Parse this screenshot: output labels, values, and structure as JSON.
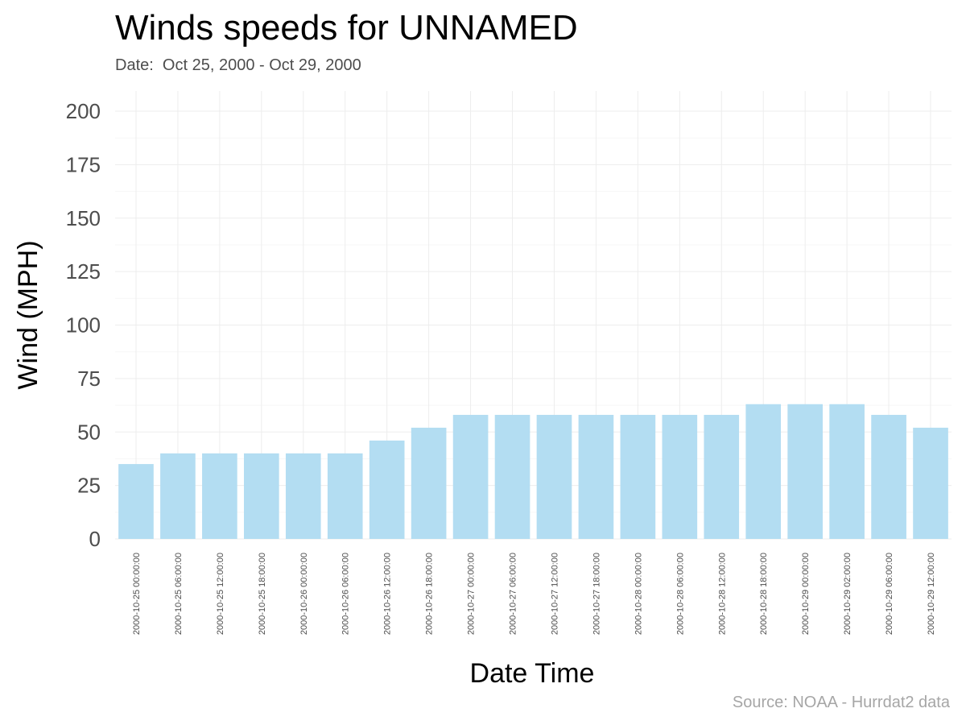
{
  "chart_data": {
    "type": "bar",
    "title": "Winds speeds for UNNAMED",
    "subtitle": "Date:  Oct 25, 2000 - Oct 29, 2000",
    "caption": "Source: NOAA - Hurrdat2 data",
    "xlabel": "Date Time",
    "ylabel": "Wind (MPH)",
    "ylim": [
      0,
      210
    ],
    "yticks": [
      0,
      25,
      50,
      75,
      100,
      125,
      150,
      175,
      200
    ],
    "grid": true,
    "bar_color": "#b3ddf2",
    "categories": [
      "2000-10-25 00:00:00",
      "2000-10-25 06:00:00",
      "2000-10-25 12:00:00",
      "2000-10-25 18:00:00",
      "2000-10-26 00:00:00",
      "2000-10-26 06:00:00",
      "2000-10-26 12:00:00",
      "2000-10-26 18:00:00",
      "2000-10-27 00:00:00",
      "2000-10-27 06:00:00",
      "2000-10-27 12:00:00",
      "2000-10-27 18:00:00",
      "2000-10-28 00:00:00",
      "2000-10-28 06:00:00",
      "2000-10-28 12:00:00",
      "2000-10-28 18:00:00",
      "2000-10-29 00:00:00",
      "2000-10-29 02:00:00",
      "2000-10-29 06:00:00",
      "2000-10-29 12:00:00"
    ],
    "values": [
      35,
      40,
      40,
      40,
      40,
      40,
      46,
      52,
      58,
      58,
      58,
      58,
      58,
      58,
      58,
      63,
      63,
      63,
      58,
      52
    ]
  }
}
